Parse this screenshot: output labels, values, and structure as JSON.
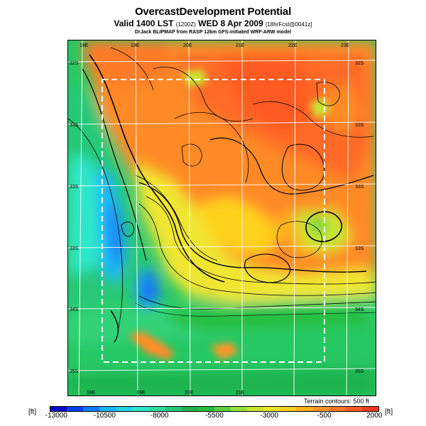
{
  "header": {
    "title": "OvercastDevelopment Potential",
    "subtitle_main": "Valid 1400 LST",
    "subtitle_utc": "(1200Z)",
    "subtitle_date": "WED 8 Apr 2009",
    "subtitle_fcst": "[18hrFcst@0041z]",
    "credit": "DrJack BLIPMAP from RASP 12km GFS-initiated WRF-ARW model"
  },
  "map": {
    "lon_labels_top": [
      "18E",
      "19E",
      "20E",
      "21E",
      "22E",
      "23E"
    ],
    "lon_labels_bottom": [
      "18E",
      "19E",
      "20E",
      "21E"
    ],
    "lat_labels_left": [
      "32S",
      "33S",
      "33S",
      "33S",
      "34S",
      "35S"
    ],
    "lat_labels_right": [
      "32S",
      "33S",
      "33S",
      "33S",
      "34S",
      "35S"
    ],
    "terrain_contours": "Terrain contours: 500 ft"
  },
  "colorbar": {
    "unit_left": "[ft]",
    "unit_right": "[ft]",
    "tick_labels": [
      "-13000",
      "-10500",
      "-8000",
      "-5500",
      "-3000",
      "-500",
      "2000"
    ],
    "colors": [
      "#0000c8",
      "#0a3cf0",
      "#1478ff",
      "#1eb4ff",
      "#28d2e6",
      "#2ee6c8",
      "#32dca0",
      "#28c878",
      "#1eb450",
      "#28be3c",
      "#5ad23c",
      "#96e13c",
      "#c8e632",
      "#f0e628",
      "#ffd21e",
      "#ffb41e",
      "#ff9628",
      "#ff7828",
      "#ff5a28",
      "#f03c1e"
    ]
  }
}
